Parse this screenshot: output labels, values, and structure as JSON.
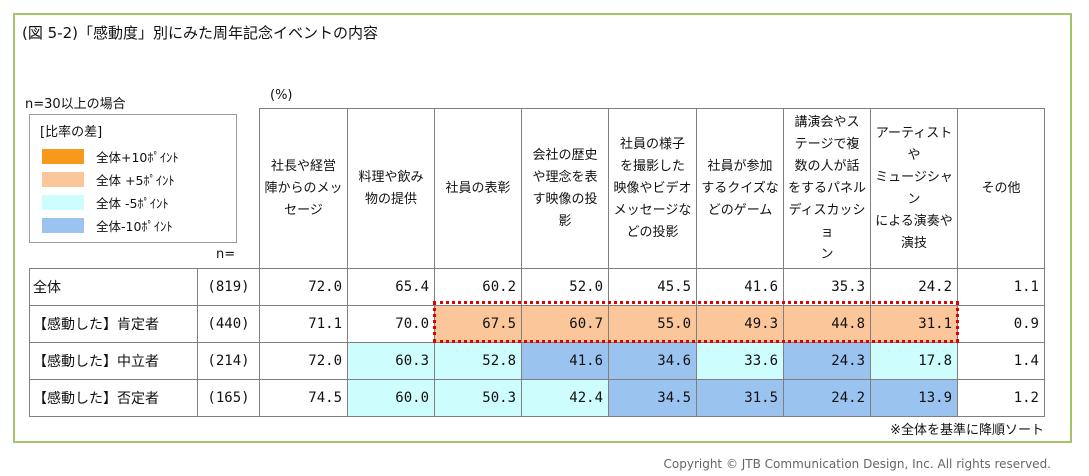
{
  "title": "(図 5-2)「感動度」別にみた周年記念イベントの内容",
  "n_note": "n=30以上の場合",
  "unit_label": "(%)",
  "n_header": "n=",
  "legend": {
    "title": "[比率の差]",
    "items": [
      {
        "label": "全体+10ﾎﾟｲﾝﾄ",
        "color": "#f79a1b"
      },
      {
        "label": "全体 +5ﾎﾟｲﾝﾄ",
        "color": "#fbc79a"
      },
      {
        "label": "全体 -5ﾎﾟｲﾝﾄ",
        "color": "#cdfdfd"
      },
      {
        "label": "全体-10ﾎﾟｲﾝﾄ",
        "color": "#9bc3f0"
      }
    ]
  },
  "sort_note": "※全体を基準に降順ソート",
  "copyright": "Copyright © JTB Communication Design, Inc. All rights reserved.",
  "chart_data": {
    "type": "table",
    "columns": [
      "社長や経営陣からのメッセージ",
      "料理や飲み物の提供",
      "社員の表彰",
      "会社の歴史や理念を表す映像の投影",
      "社員の様子を撮影した映像やビデオメッセージなどの投影",
      "社員が参加するクイズなどのゲーム",
      "講演会やステージで複数の人が話をするパネルディスカッション",
      "アーティストやミュージシャンによる演奏や演技",
      "その他"
    ],
    "column_lines": [
      [
        "社長や経営",
        "陣からのメッ",
        "セージ"
      ],
      [
        "料理や飲み",
        "物の提供"
      ],
      [
        "社員の表彰"
      ],
      [
        "会社の歴史",
        "や理念を表",
        "す映像の投",
        "影"
      ],
      [
        "社員の様子",
        "を撮影した",
        "映像やビデオ",
        "メッセージな",
        "どの投影"
      ],
      [
        "社員が参加",
        "するクイズな",
        "どのゲーム"
      ],
      [
        "講演会やス",
        "テージで複",
        "数の人が話",
        "をするパネル",
        "ディスカッショ",
        "ン"
      ],
      [
        "アーティストや",
        "ミュージシャン",
        "による演奏や",
        "演技"
      ],
      [
        "その他"
      ]
    ],
    "rows": [
      {
        "label": "全体",
        "n": "(819)",
        "values": [
          "72.0",
          "65.4",
          "60.2",
          "52.0",
          "45.5",
          "41.6",
          "35.3",
          "24.2",
          "1.1"
        ],
        "colors": [
          "",
          "",
          "",
          "",
          "",
          "",
          "",
          "",
          ""
        ]
      },
      {
        "label": "【感動した】肯定者",
        "n": "(440)",
        "values": [
          "71.1",
          "70.0",
          "67.5",
          "60.7",
          "55.0",
          "49.3",
          "44.8",
          "31.1",
          "0.9"
        ],
        "colors": [
          "",
          "",
          "#fbc79a",
          "#fbc79a",
          "#fbc79a",
          "#fbc79a",
          "#fbc79a",
          "#fbc79a",
          ""
        ]
      },
      {
        "label": "【感動した】中立者",
        "n": "(214)",
        "values": [
          "72.0",
          "60.3",
          "52.8",
          "41.6",
          "34.6",
          "33.6",
          "24.3",
          "17.8",
          "1.4"
        ],
        "colors": [
          "",
          "#cdfdfd",
          "#cdfdfd",
          "#9bc3f0",
          "#9bc3f0",
          "#cdfdfd",
          "#9bc3f0",
          "#cdfdfd",
          ""
        ]
      },
      {
        "label": "【感動した】否定者",
        "n": "(165)",
        "values": [
          "74.5",
          "60.0",
          "50.3",
          "42.4",
          "34.5",
          "31.5",
          "24.2",
          "13.9",
          "1.2"
        ],
        "colors": [
          "",
          "#cdfdfd",
          "#cdfdfd",
          "#cdfdfd",
          "#9bc3f0",
          "#9bc3f0",
          "#9bc3f0",
          "#9bc3f0",
          ""
        ]
      }
    ]
  }
}
